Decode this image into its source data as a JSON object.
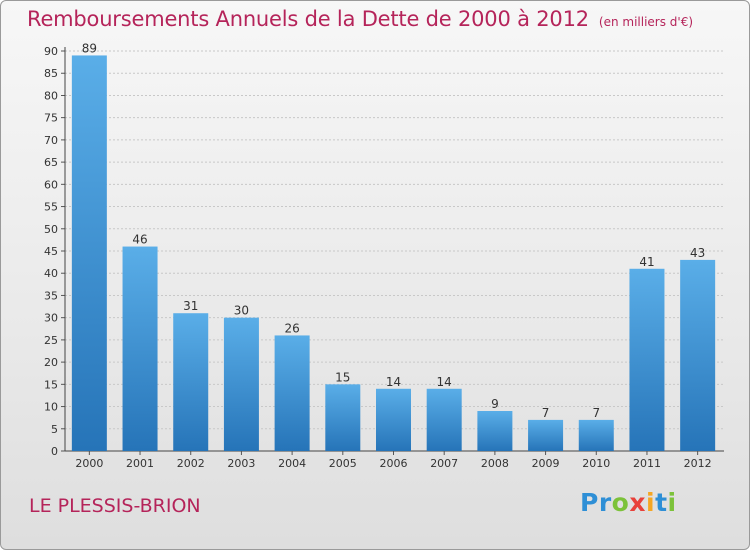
{
  "title": "Remboursements Annuels de la Dette de 2000 à 2012",
  "unit": "(en milliers d'€)",
  "location": "LE PLESSIS-BRION",
  "brand": {
    "letters": [
      {
        "ch": "P",
        "color": "#2e8fd6"
      },
      {
        "ch": "r",
        "color": "#2e8fd6"
      },
      {
        "ch": "o",
        "color": "#7cc23a"
      },
      {
        "ch": "x",
        "color": "#e8413a"
      },
      {
        "ch": "i",
        "color": "#f5a623"
      },
      {
        "ch": "t",
        "color": "#2e8fd6"
      },
      {
        "ch": "i",
        "color": "#7cc23a"
      }
    ]
  },
  "colors": {
    "bar_top": "#5aaee8",
    "bar_bottom": "#2674b8",
    "title": "#b5245a"
  },
  "chart_data": {
    "type": "bar",
    "categories": [
      "2000",
      "2001",
      "2002",
      "2003",
      "2004",
      "2005",
      "2006",
      "2007",
      "2008",
      "2009",
      "2010",
      "2011",
      "2012"
    ],
    "values": [
      89,
      46,
      31,
      30,
      26,
      15,
      14,
      14,
      9,
      7,
      7,
      41,
      43
    ],
    "ylim": [
      0,
      90
    ],
    "yticks": [
      0,
      5,
      10,
      15,
      20,
      25,
      30,
      35,
      40,
      45,
      50,
      55,
      60,
      65,
      70,
      75,
      80,
      85,
      90
    ],
    "grid": true,
    "data_labels": true
  }
}
